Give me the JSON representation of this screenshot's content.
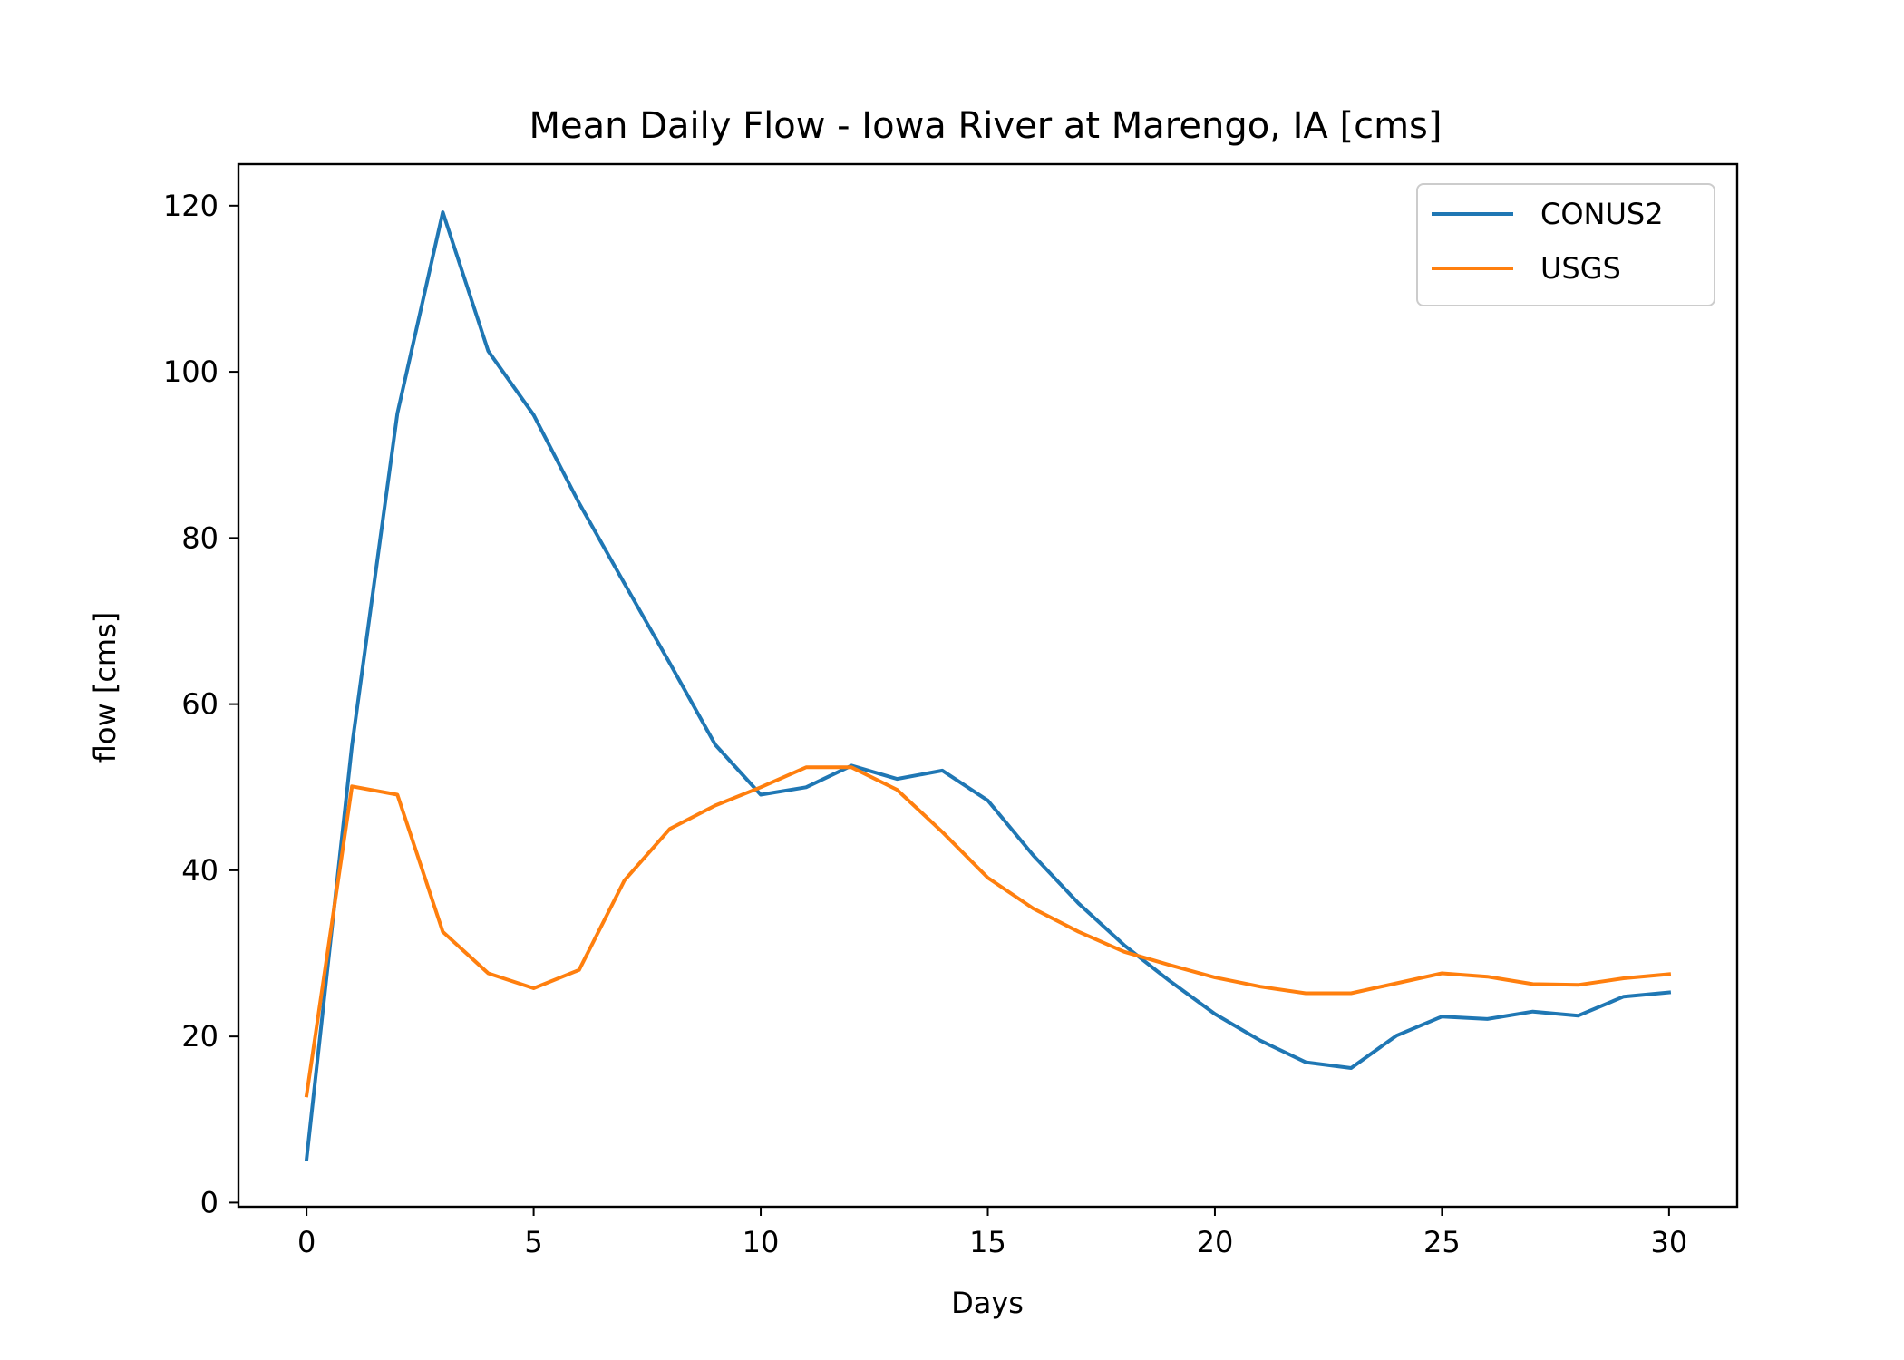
{
  "chart_data": {
    "type": "line",
    "title": "Mean Daily Flow - Iowa River at Marengo, IA [cms]",
    "xlabel": "Days",
    "ylabel": "flow [cms]",
    "xlim": [
      -1.5,
      31.5
    ],
    "ylim": [
      -0.5,
      125
    ],
    "xticks": [
      0,
      5,
      10,
      15,
      20,
      25,
      30
    ],
    "yticks": [
      0,
      20,
      40,
      60,
      80,
      100,
      120
    ],
    "grid": false,
    "legend_position": "upper right",
    "x": [
      0,
      1,
      2,
      3,
      4,
      5,
      6,
      7,
      8,
      9,
      10,
      11,
      12,
      13,
      14,
      15,
      16,
      17,
      18,
      19,
      20,
      21,
      22,
      23,
      24,
      25,
      26,
      27,
      28,
      29,
      30
    ],
    "series": [
      {
        "name": "CONUS2",
        "color": "#1f77b4",
        "values": [
          5.2,
          55.0,
          95.0,
          119.2,
          102.5,
          94.8,
          84.2,
          74.5,
          64.9,
          55.1,
          49.1,
          50.0,
          52.6,
          51.0,
          52.0,
          48.4,
          41.8,
          36.0,
          31.0,
          26.7,
          22.7,
          19.5,
          16.9,
          16.2,
          20.1,
          22.4,
          22.1,
          23.0,
          22.5,
          24.8,
          25.3
        ]
      },
      {
        "name": "USGS",
        "color": "#ff7f0e",
        "values": [
          12.9,
          50.1,
          49.1,
          32.6,
          27.6,
          25.8,
          28.0,
          38.8,
          45.0,
          47.8,
          50.0,
          52.4,
          52.4,
          49.7,
          44.6,
          39.1,
          35.4,
          32.6,
          30.2,
          28.6,
          27.1,
          26.0,
          25.2,
          25.2,
          26.4,
          27.6,
          27.2,
          26.3,
          26.2,
          27.0,
          27.5
        ]
      }
    ]
  }
}
